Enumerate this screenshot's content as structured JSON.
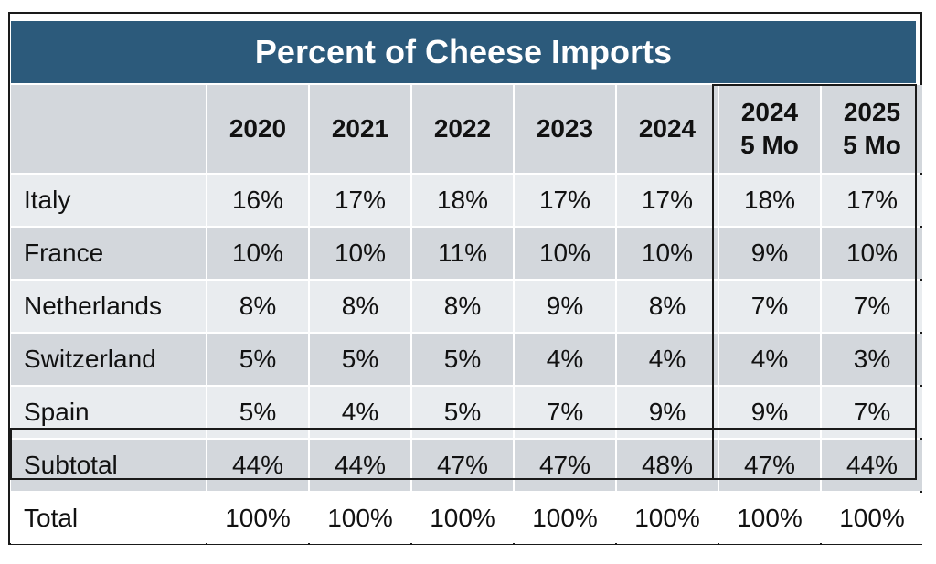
{
  "chart_data": {
    "type": "table",
    "title": "Percent of Cheese Imports",
    "columns": [
      "2020",
      "2021",
      "2022",
      "2023",
      "2024",
      "2024\n5 Mo",
      "2025\n5 Mo"
    ],
    "rows": [
      {
        "label": "Italy",
        "values": [
          "16%",
          "17%",
          "18%",
          "17%",
          "17%",
          "18%",
          "17%"
        ]
      },
      {
        "label": "France",
        "values": [
          "10%",
          "10%",
          "11%",
          "10%",
          "10%",
          "9%",
          "10%"
        ]
      },
      {
        "label": "Netherlands",
        "values": [
          "8%",
          "8%",
          "8%",
          "9%",
          "8%",
          "7%",
          "7%"
        ]
      },
      {
        "label": "Switzerland",
        "values": [
          "5%",
          "5%",
          "5%",
          "4%",
          "4%",
          "4%",
          "3%"
        ]
      },
      {
        "label": "Spain",
        "values": [
          "5%",
          "4%",
          "5%",
          "7%",
          "9%",
          "9%",
          "7%"
        ]
      },
      {
        "label": "Subtotal",
        "values": [
          "44%",
          "44%",
          "47%",
          "47%",
          "48%",
          "47%",
          "44%"
        ]
      },
      {
        "label": "Total",
        "values": [
          "100%",
          "100%",
          "100%",
          "100%",
          "100%",
          "100%",
          "100%"
        ]
      }
    ]
  },
  "colors": {
    "title_bg": "#2c5a7b",
    "header_bg": "#d3d7dc",
    "row_light": "#e9ecef",
    "row_dark": "#d3d7dc"
  }
}
